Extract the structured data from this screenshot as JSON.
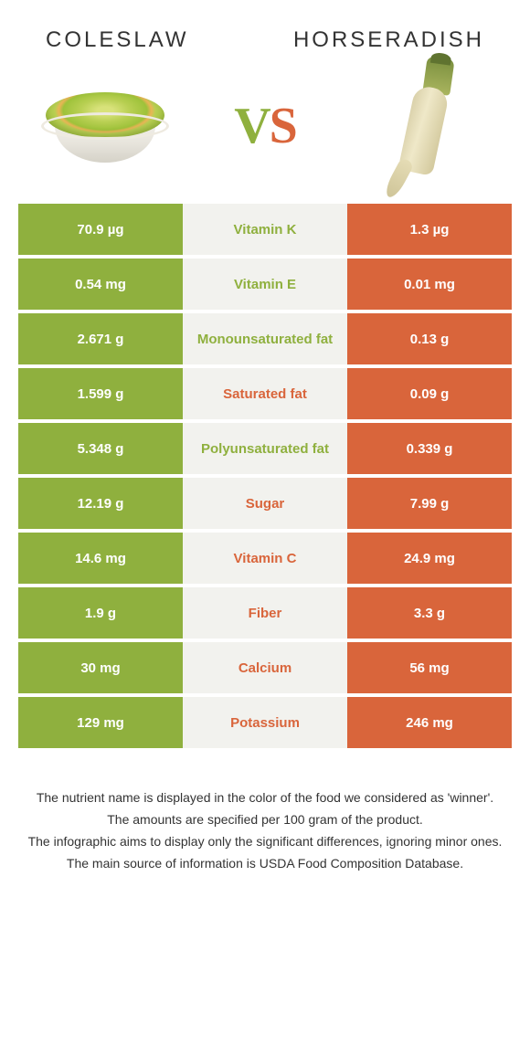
{
  "header": {
    "left_title": "COLESLAW",
    "right_title": "HORSERADISH",
    "vs_v": "V",
    "vs_s": "S"
  },
  "colors": {
    "green": "#8fb03e",
    "orange": "#d9653b",
    "mid_bg": "#f2f2ee",
    "text": "#333333",
    "background": "#ffffff"
  },
  "rows": [
    {
      "left": "70.9 µg",
      "label": "Vitamin K",
      "right": "1.3 µg",
      "winner": "green"
    },
    {
      "left": "0.54 mg",
      "label": "Vitamin E",
      "right": "0.01 mg",
      "winner": "green"
    },
    {
      "left": "2.671 g",
      "label": "Monounsaturated fat",
      "right": "0.13 g",
      "winner": "green"
    },
    {
      "left": "1.599 g",
      "label": "Saturated fat",
      "right": "0.09 g",
      "winner": "orange"
    },
    {
      "left": "5.348 g",
      "label": "Polyunsaturated fat",
      "right": "0.339 g",
      "winner": "green"
    },
    {
      "left": "12.19 g",
      "label": "Sugar",
      "right": "7.99 g",
      "winner": "orange"
    },
    {
      "left": "14.6 mg",
      "label": "Vitamin C",
      "right": "24.9 mg",
      "winner": "orange"
    },
    {
      "left": "1.9 g",
      "label": "Fiber",
      "right": "3.3 g",
      "winner": "orange"
    },
    {
      "left": "30 mg",
      "label": "Calcium",
      "right": "56 mg",
      "winner": "orange"
    },
    {
      "left": "129 mg",
      "label": "Potassium",
      "right": "246 mg",
      "winner": "orange"
    }
  ],
  "footer": {
    "line1": "The nutrient name is displayed in the color of the food we considered as 'winner'.",
    "line2": "The amounts are specified per 100 gram of the product.",
    "line3": "The infographic aims to display only the significant differences, ignoring minor ones.",
    "line4": "The main source of information is USDA Food Composition Database."
  }
}
